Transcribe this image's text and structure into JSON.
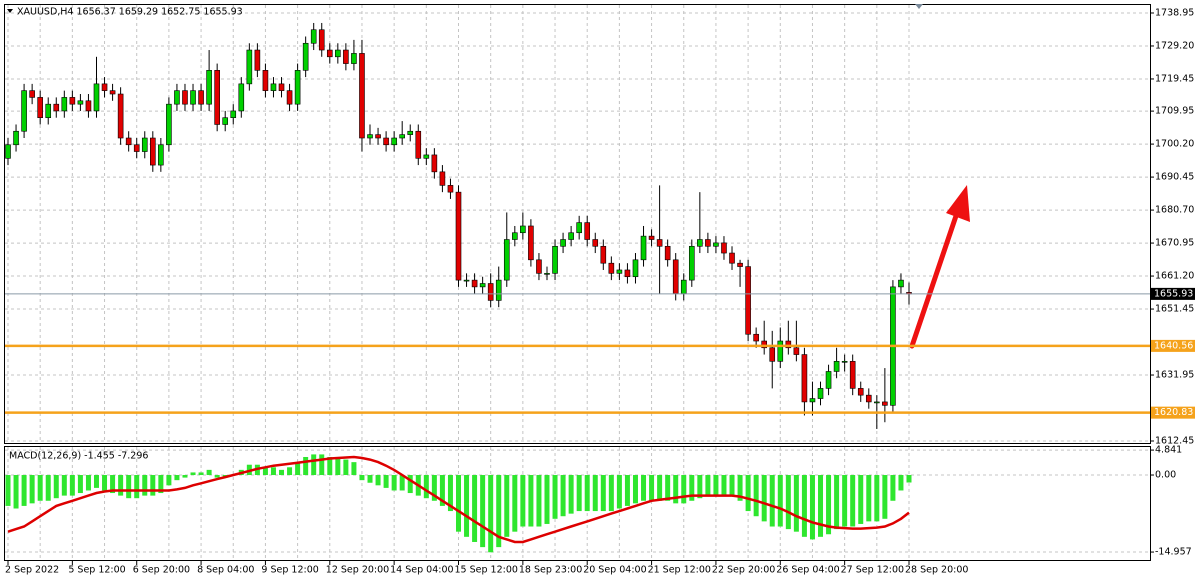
{
  "chart_data": [
    {
      "type": "candlestick",
      "title": "XAUUSD,H4  1656.37 1659.29 1652.75 1655.93",
      "categories": [
        "2 Sep 2022",
        null,
        null,
        null,
        null,
        null,
        null,
        null,
        "5 Sep 12:00",
        null,
        null,
        null,
        null,
        null,
        null,
        null,
        "6 Sep 20:00",
        null,
        null,
        null,
        null,
        null,
        null,
        null,
        "8 Sep 04:00",
        null,
        null,
        null,
        null,
        null,
        null,
        null,
        "9 Sep 12:00",
        null,
        null,
        null,
        null,
        null,
        null,
        null,
        "12 Sep 20:00",
        null,
        null,
        null,
        null,
        null,
        null,
        null,
        "14 Sep 04:00",
        null,
        null,
        null,
        null,
        null,
        null,
        null,
        "15 Sep 12:00",
        null,
        null,
        null,
        null,
        null,
        null,
        null,
        "18 Sep 23:00",
        null,
        null,
        null,
        null,
        null,
        null,
        null,
        "20 Sep 04:00",
        null,
        null,
        null,
        null,
        null,
        null,
        null,
        "21 Sep 12:00",
        null,
        null,
        null,
        null,
        null,
        null,
        null,
        "22 Sep 20:00",
        null,
        null,
        null,
        null,
        null,
        null,
        null,
        "26 Sep 04:00",
        null,
        null,
        null,
        null,
        null,
        null,
        null,
        "27 Sep 12:00",
        null,
        null,
        null,
        null,
        null,
        null,
        null,
        "28 Sep 20:00"
      ],
      "open": [
        1696,
        1700,
        1704,
        1716,
        1714,
        1708,
        1712,
        1710,
        1714,
        1712,
        1713,
        1710,
        1718,
        1716,
        1715,
        1702,
        1700,
        1698,
        1702,
        1694,
        1700,
        1712,
        1716,
        1712,
        1716,
        1712,
        1722,
        1706,
        1708,
        1710,
        1718,
        1728,
        1722,
        1716,
        1718,
        1716,
        1712,
        1722,
        1730,
        1734,
        1728,
        1726,
        1728,
        1724,
        1727,
        1702,
        1703,
        1702,
        1700,
        1702,
        1703,
        1704,
        1696,
        1697,
        1692,
        1688,
        1686,
        1660,
        1660,
        1658,
        1659,
        1654,
        1660,
        1672,
        1674,
        1676,
        1666,
        1662,
        1662,
        1670,
        1672,
        1674,
        1677,
        1672,
        1670,
        1665,
        1662,
        1663,
        1661,
        1666,
        1673,
        1672,
        1670,
        1666,
        1656,
        1660,
        1670,
        1672,
        1670,
        1671,
        1668,
        1665,
        1664,
        1644,
        1642,
        1640,
        1636,
        1642,
        1640,
        1638,
        1624,
        1625,
        1628,
        1633,
        1636,
        1636,
        1628,
        1626,
        1624,
        1624,
        1623,
        1658,
        1656.37
      ],
      "high": [
        1702,
        1706,
        1718,
        1718,
        1716,
        1714,
        1714,
        1716,
        1716,
        1715,
        1715,
        1726,
        1720,
        1718,
        1717,
        1704,
        1702,
        1704,
        1704,
        1702,
        1714,
        1718,
        1718,
        1718,
        1718,
        1728,
        1724,
        1710,
        1712,
        1720,
        1730,
        1730,
        1724,
        1720,
        1720,
        1718,
        1724,
        1732,
        1736,
        1736,
        1730,
        1730,
        1730,
        1731,
        1731,
        1706,
        1705,
        1704,
        1704,
        1707,
        1706,
        1706,
        1699,
        1699,
        1694,
        1690,
        1688,
        1662,
        1662,
        1661,
        1662,
        1664,
        1680,
        1676,
        1680,
        1678,
        1668,
        1664,
        1672,
        1674,
        1676,
        1679,
        1679,
        1674,
        1672,
        1667,
        1665,
        1665,
        1668,
        1676,
        1675,
        1688,
        1672,
        1668,
        1662,
        1672,
        1686,
        1674,
        1673,
        1673,
        1670,
        1666,
        1666,
        1646,
        1648,
        1645,
        1646,
        1648,
        1648,
        1640,
        1630,
        1630,
        1635,
        1640,
        1638,
        1638,
        1630,
        1628,
        1626,
        1634,
        1660,
        1662,
        1659.29
      ],
      "low": [
        1694,
        1698,
        1702,
        1712,
        1706,
        1706,
        1708,
        1708,
        1710,
        1710,
        1708,
        1708,
        1714,
        1713,
        1700,
        1698,
        1696,
        1696,
        1692,
        1692,
        1698,
        1710,
        1710,
        1710,
        1710,
        1710,
        1704,
        1704,
        1706,
        1708,
        1716,
        1720,
        1714,
        1714,
        1714,
        1710,
        1710,
        1720,
        1728,
        1726,
        1724,
        1724,
        1722,
        1722,
        1698,
        1700,
        1700,
        1698,
        1698,
        1700,
        1701,
        1694,
        1694,
        1690,
        1686,
        1684,
        1658,
        1658,
        1656,
        1656,
        1652,
        1652,
        1658,
        1670,
        1672,
        1664,
        1660,
        1660,
        1660,
        1668,
        1670,
        1672,
        1670,
        1668,
        1663,
        1660,
        1660,
        1659,
        1659,
        1664,
        1670,
        1656,
        1664,
        1654,
        1654,
        1658,
        1668,
        1668,
        1668,
        1666,
        1663,
        1658,
        1642,
        1640,
        1638,
        1628,
        1634,
        1638,
        1636,
        1620,
        1620,
        1623,
        1626,
        1631,
        1633,
        1626,
        1624,
        1622,
        1616,
        1618,
        1621,
        1656,
        1652.75
      ],
      "close": [
        1700,
        1704,
        1716,
        1714,
        1708,
        1712,
        1710,
        1714,
        1712,
        1713,
        1710,
        1718,
        1716,
        1715,
        1702,
        1700,
        1698,
        1702,
        1694,
        1700,
        1712,
        1716,
        1712,
        1716,
        1712,
        1722,
        1706,
        1708,
        1710,
        1718,
        1728,
        1722,
        1716,
        1718,
        1716,
        1712,
        1722,
        1730,
        1734,
        1728,
        1726,
        1728,
        1724,
        1727,
        1702,
        1703,
        1702,
        1700,
        1702,
        1703,
        1704,
        1696,
        1697,
        1692,
        1688,
        1686,
        1660,
        1660,
        1658,
        1659,
        1654,
        1660,
        1672,
        1674,
        1676,
        1666,
        1662,
        1662,
        1670,
        1672,
        1674,
        1677,
        1672,
        1670,
        1665,
        1662,
        1663,
        1661,
        1666,
        1673,
        1672,
        1670,
        1666,
        1656,
        1660,
        1670,
        1672,
        1670,
        1671,
        1668,
        1665,
        1664,
        1644,
        1642,
        1640,
        1636,
        1642,
        1640,
        1638,
        1624,
        1625,
        1628,
        1633,
        1636,
        1636,
        1628,
        1626,
        1624,
        1624,
        1623,
        1658,
        1660,
        1655.93
      ],
      "up_color": "#00d000",
      "down_color": "#e00000",
      "levels": [
        1640.56,
        1620.83
      ],
      "level_color": "#f5a21b",
      "ylim": [
        1611.86,
        1741.31
      ],
      "yticks": [
        1738.95,
        {
          "value": 1729.2,
          "label": "1729.20"
        },
        1719.45,
        1709.95,
        {
          "value": 1700.2,
          "label": "1700.20"
        },
        1690.45,
        {
          "value": 1680.7,
          "label": "1680.70"
        },
        1670.95,
        {
          "value": 1661.2,
          "label": "1661.20"
        },
        1651.45,
        1631.95,
        1612.45
      ],
      "grid": true
    },
    {
      "type": "macd",
      "title": "MACD(12,26,9) -1.455 -7.296",
      "values": [
        -6,
        -6.5,
        -6,
        -5.5,
        -5,
        -5,
        -4.5,
        -4,
        -4,
        -3.5,
        -3,
        -2.5,
        -3,
        -3.5,
        -4,
        -4.5,
        -4.5,
        -4,
        -4,
        -3.5,
        -2,
        -1,
        -0.5,
        0.5,
        0.5,
        1,
        -0.5,
        -0.5,
        0,
        1,
        2,
        2,
        1.5,
        1.5,
        1,
        1.5,
        2.5,
        3.5,
        4,
        4,
        3.5,
        3.5,
        3,
        2.5,
        -1,
        -1.5,
        -2,
        -2.5,
        -3,
        -3,
        -3.5,
        -4,
        -4.5,
        -5,
        -6,
        -7,
        -11,
        -12,
        -13,
        -14,
        -15,
        -14,
        -12,
        -11,
        -10,
        -10,
        -10,
        -9.5,
        -8.5,
        -8,
        -7.5,
        -7,
        -7,
        -7,
        -7,
        -7,
        -6.5,
        -6,
        -5.5,
        -5,
        -5,
        -5,
        -5,
        -5.5,
        -5.5,
        -5,
        -4.5,
        -4,
        -4,
        -4,
        -4,
        -5,
        -7,
        -8,
        -9,
        -10,
        -10,
        -10.5,
        -11,
        -12,
        -12.5,
        -12,
        -11.5,
        -10.5,
        -10,
        -10,
        -9.5,
        -9,
        -9,
        -8.5,
        -5,
        -3,
        -1.455
      ],
      "signal": [
        -11,
        -10.5,
        -10,
        -9,
        -8,
        -7,
        -6,
        -5.5,
        -5,
        -4.5,
        -4,
        -3.5,
        -3.2,
        -3,
        -3,
        -3,
        -3,
        -3,
        -3,
        -3,
        -3,
        -2.8,
        -2.5,
        -2,
        -1.6,
        -1.2,
        -0.8,
        -0.4,
        0,
        0.4,
        0.8,
        1.2,
        1.5,
        1.8,
        2,
        2.2,
        2.4,
        2.6,
        2.8,
        3,
        3.2,
        3.3,
        3.4,
        3.5,
        3.3,
        3,
        2.5,
        1.8,
        1,
        0,
        -1,
        -2,
        -3,
        -4,
        -5,
        -6,
        -7,
        -8,
        -9,
        -10,
        -11,
        -12,
        -12.5,
        -13,
        -13,
        -12.5,
        -12,
        -11.5,
        -11,
        -10.5,
        -10,
        -9.5,
        -9,
        -8.5,
        -8,
        -7.5,
        -7,
        -6.5,
        -6,
        -5.5,
        -5,
        -4.8,
        -4.6,
        -4.4,
        -4.2,
        -4,
        -4,
        -4,
        -4,
        -4,
        -4,
        -4.2,
        -4.6,
        -5,
        -5.5,
        -6,
        -6.5,
        -7.2,
        -8,
        -8.6,
        -9.2,
        -9.6,
        -10,
        -10.2,
        -10.3,
        -10.4,
        -10.4,
        -10.3,
        -10.2,
        -10,
        -9.4,
        -8.5,
        -7.296
      ],
      "color": "#2ee62e",
      "signal_color": "#dd0000",
      "ylim": [
        -16.5,
        5.44
      ],
      "yticks": [
        4.841,
        {
          "value": 0,
          "label": "0.00"
        },
        -14.957
      ],
      "grid": true
    }
  ]
}
